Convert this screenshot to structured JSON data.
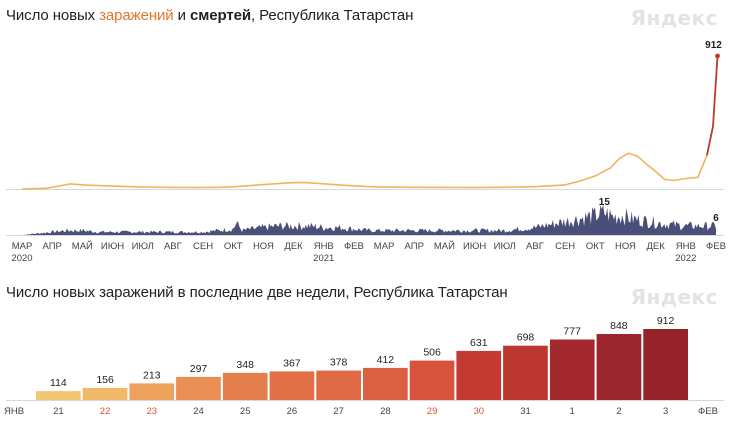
{
  "brand": "Яндекс",
  "chart_data": [
    {
      "type": "line",
      "title_parts": {
        "prefix": "Число новых ",
        "highlight": "заражений",
        "middle": " и ",
        "bold": "смертей",
        "suffix": ", Республика Татарстан"
      },
      "xlabel": "",
      "ylabel": "",
      "x_ticks": [
        "МАР",
        "АПР",
        "МАЙ",
        "ИЮН",
        "ИЮЛ",
        "АВГ",
        "СЕН",
        "ОКТ",
        "НОЯ",
        "ДЕК",
        "ЯНВ",
        "ФЕВ",
        "МАР",
        "АПР",
        "МАЙ",
        "ИЮН",
        "ИЮЛ",
        "АВГ",
        "СЕН",
        "ОКТ",
        "НОЯ",
        "ДЕК",
        "ЯНВ",
        "ФЕВ"
      ],
      "x_tick_years": {
        "0": "2020",
        "10": "2021",
        "22": "2022"
      },
      "infections": {
        "color": "#f0b35e",
        "end_color": "#c0392b",
        "peak_label": "912",
        "points": [
          [
            0,
            0
          ],
          [
            0.8,
            5
          ],
          [
            1.2,
            20
          ],
          [
            1.6,
            35
          ],
          [
            2.2,
            26
          ],
          [
            3,
            20
          ],
          [
            4,
            14
          ],
          [
            5,
            11
          ],
          [
            6,
            10
          ],
          [
            6.6,
            12
          ],
          [
            7.2,
            18
          ],
          [
            8,
            30
          ],
          [
            8.8,
            42
          ],
          [
            9.3,
            45
          ],
          [
            9.9,
            37
          ],
          [
            10.5,
            28
          ],
          [
            11,
            22
          ],
          [
            11.5,
            16
          ],
          [
            12,
            13
          ],
          [
            13,
            12
          ],
          [
            14,
            11
          ],
          [
            15,
            10
          ],
          [
            16,
            12
          ],
          [
            16.5,
            14
          ],
          [
            17,
            16
          ],
          [
            17.5,
            22
          ],
          [
            18,
            28
          ],
          [
            18.5,
            55
          ],
          [
            19,
            90
          ],
          [
            19.5,
            145
          ],
          [
            19.8,
            210
          ],
          [
            20.1,
            245
          ],
          [
            20.4,
            225
          ],
          [
            20.7,
            170
          ],
          [
            21,
            120
          ],
          [
            21.3,
            65
          ],
          [
            21.6,
            58
          ],
          [
            22,
            72
          ],
          [
            22.4,
            80
          ],
          [
            22.7,
            230
          ],
          [
            22.9,
            430
          ],
          [
            23.05,
            912
          ]
        ]
      },
      "deaths": {
        "color": "#4a4f7a",
        "peak_label": "15",
        "end_label": "6",
        "points": [
          [
            0,
            0
          ],
          [
            0.5,
            1
          ],
          [
            1,
            2
          ],
          [
            1.5,
            3
          ],
          [
            2,
            3
          ],
          [
            2.5,
            2
          ],
          [
            3,
            2
          ],
          [
            4,
            2
          ],
          [
            5,
            2
          ],
          [
            6,
            2
          ],
          [
            6.5,
            3
          ],
          [
            7,
            4
          ],
          [
            7.1,
            8
          ],
          [
            7.3,
            3
          ],
          [
            7.6,
            4
          ],
          [
            8,
            5
          ],
          [
            8.5,
            6
          ],
          [
            9,
            6
          ],
          [
            9.5,
            6
          ],
          [
            10,
            5
          ],
          [
            10.5,
            5
          ],
          [
            11,
            4
          ],
          [
            11.5,
            3
          ],
          [
            12,
            3
          ],
          [
            13,
            3
          ],
          [
            14,
            3
          ],
          [
            15,
            3
          ],
          [
            16,
            3
          ],
          [
            16.5,
            4
          ],
          [
            17,
            5
          ],
          [
            17.5,
            7
          ],
          [
            18,
            9
          ],
          [
            18.5,
            11
          ],
          [
            19,
            13
          ],
          [
            19.3,
            15
          ],
          [
            19.6,
            12
          ],
          [
            19.9,
            13
          ],
          [
            20.2,
            11
          ],
          [
            20.5,
            10
          ],
          [
            20.8,
            9
          ],
          [
            21.1,
            8
          ],
          [
            21.5,
            7
          ],
          [
            22,
            6
          ],
          [
            22.5,
            6
          ],
          [
            23,
            6
          ]
        ]
      }
    },
    {
      "type": "bar",
      "title": "Число новых заражений в последние две недели, Республика Татарстан",
      "xlabel": "",
      "ylabel": "",
      "start_label": "ЯНВ",
      "end_label": "ФЕВ",
      "categories": [
        "21",
        "22",
        "23",
        "24",
        "25",
        "26",
        "27",
        "28",
        "29",
        "30",
        "31",
        "1",
        "2",
        "3"
      ],
      "weekend": [
        false,
        true,
        true,
        false,
        false,
        false,
        false,
        false,
        true,
        true,
        false,
        false,
        false,
        false
      ],
      "values": [
        114,
        156,
        213,
        297,
        348,
        367,
        378,
        412,
        506,
        631,
        698,
        777,
        848,
        912
      ],
      "colors": [
        "#f3c673",
        "#f0b867",
        "#eca25d",
        "#e98f55",
        "#e57e4d",
        "#e27148",
        "#e06a45",
        "#db5f41",
        "#d6533d",
        "#c43a32",
        "#bd3731",
        "#a3292e",
        "#9b262d",
        "#962329"
      ]
    }
  ]
}
